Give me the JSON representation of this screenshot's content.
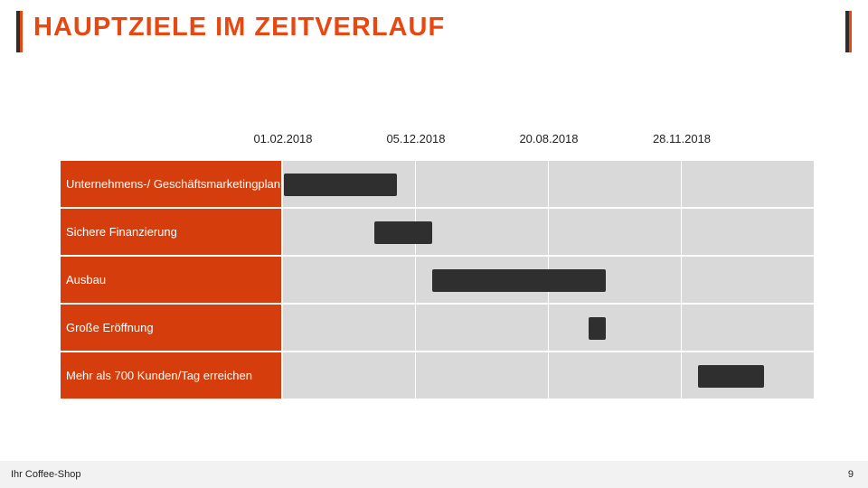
{
  "title": "HAUPTZIELE IM ZEITVERLAUF",
  "colors": {
    "accent_dark": "#2d2d2d",
    "accent_light": "#e8470f",
    "title": "#e8470f",
    "row_label_bg": "#d53e0c",
    "cell_bg": "#d9d9d9",
    "bar": "#2f2f2f"
  },
  "dates": [
    "01.02.2018",
    "05.12.2018",
    "20.08.2018",
    "28.11.2018"
  ],
  "tasks": [
    {
      "label": "Unternehmens-/ Geschäftsmarketingplan",
      "start": 0.01,
      "end": 0.86
    },
    {
      "label": "Sichere Finanzierung",
      "start": 0.69,
      "end": 1.12
    },
    {
      "label": "Ausbau",
      "start": 1.12,
      "end": 2.43
    },
    {
      "label": "Große Eröffnung",
      "start": 2.3,
      "end": 2.43
    },
    {
      "label": "Mehr als 700 Kunden/Tag erreichen",
      "start": 3.12,
      "end": 3.62
    }
  ],
  "footer": {
    "company": "Ihr Coffee-Shop",
    "page": "9"
  }
}
